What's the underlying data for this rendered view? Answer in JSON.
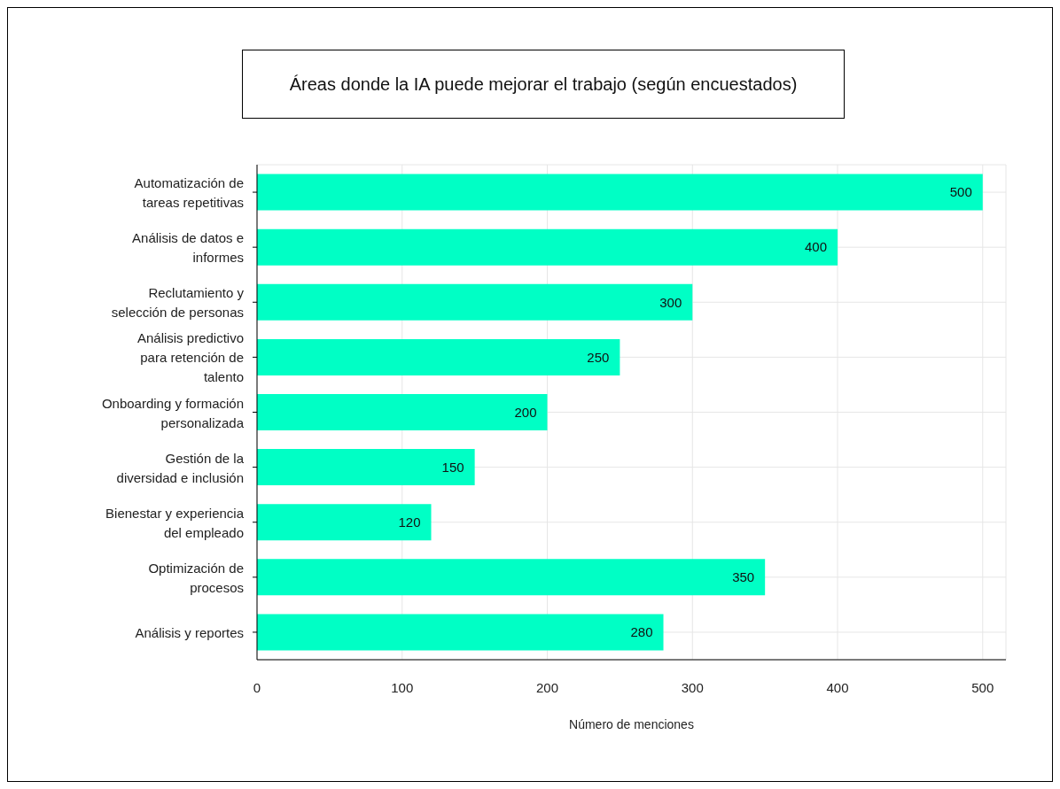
{
  "chart_data": {
    "type": "bar",
    "orientation": "horizontal",
    "title": "Áreas donde la IA puede mejorar el trabajo (según encuestados)",
    "xlabel": "Número de menciones",
    "categories": [
      "Automatización de tareas repetitivas",
      "Análisis de datos e informes",
      "Reclutamiento y selección de personas",
      "Análisis predictivo para retención de talento",
      "Onboarding y formación personalizada",
      "Gestión de la diversidad e inclusión",
      "Bienestar y experiencia del empleado",
      "Optimización de procesos",
      "Análisis y reportes"
    ],
    "values": [
      500,
      400,
      300,
      250,
      200,
      150,
      120,
      350,
      280
    ],
    "color": "#00ffc5",
    "xlim": [
      0,
      516
    ],
    "xticks": [
      0,
      100,
      200,
      300,
      400,
      500
    ],
    "grid": true,
    "data_labels": true
  }
}
